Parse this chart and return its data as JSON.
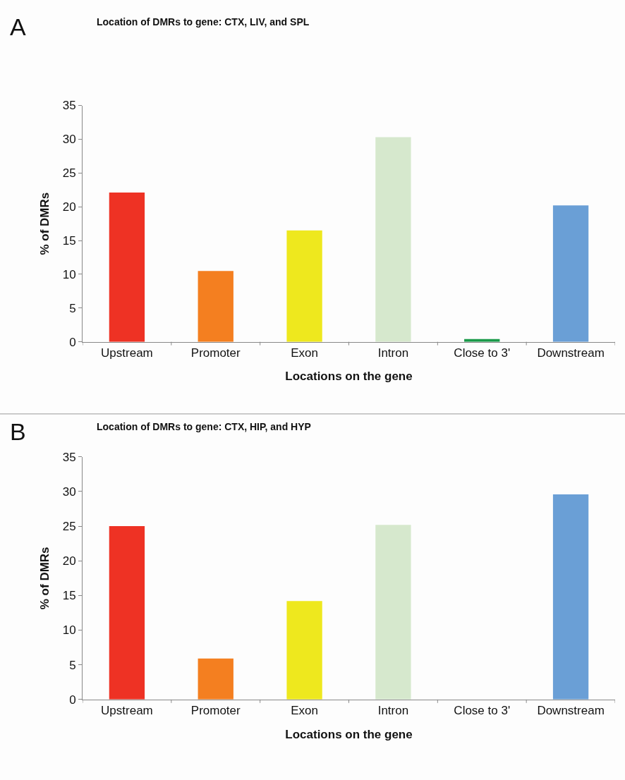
{
  "chart_data": [
    {
      "type": "bar",
      "title": "Location of DMRs to gene: CTX, LIV, and SPL",
      "annotations": [
        "A"
      ],
      "xlabel": "Locations on the gene",
      "ylabel": "% of DMRs",
      "categories": [
        "Upstream",
        "Promoter",
        "Exon",
        "Intron",
        "Close to 3'",
        "Downstream"
      ],
      "values": [
        22.1,
        10.5,
        16.5,
        30.3,
        0.4,
        20.2
      ],
      "colors": [
        "#ee3224",
        "#f47f20",
        "#eee81e",
        "#d6e8cd",
        "#1a9a4a",
        "#6a9fd6"
      ],
      "ylim": [
        0,
        35
      ],
      "yticks": [
        0,
        5,
        10,
        15,
        20,
        25,
        30,
        35
      ]
    },
    {
      "type": "bar",
      "title": "Location of DMRs to gene: CTX, HIP, and HYP",
      "annotations": [
        "B"
      ],
      "xlabel": "Locations on the gene",
      "ylabel": "% of DMRs",
      "categories": [
        "Upstream",
        "Promoter",
        "Exon",
        "Intron",
        "Close to 3'",
        "Downstream"
      ],
      "values": [
        25.0,
        5.9,
        14.2,
        25.2,
        0,
        29.6
      ],
      "colors": [
        "#ee3224",
        "#f47f20",
        "#eee81e",
        "#d6e8cd",
        "#1a9a4a",
        "#6a9fd6"
      ],
      "ylim": [
        0,
        35
      ],
      "yticks": [
        0,
        5,
        10,
        15,
        20,
        25,
        30,
        35
      ]
    }
  ]
}
